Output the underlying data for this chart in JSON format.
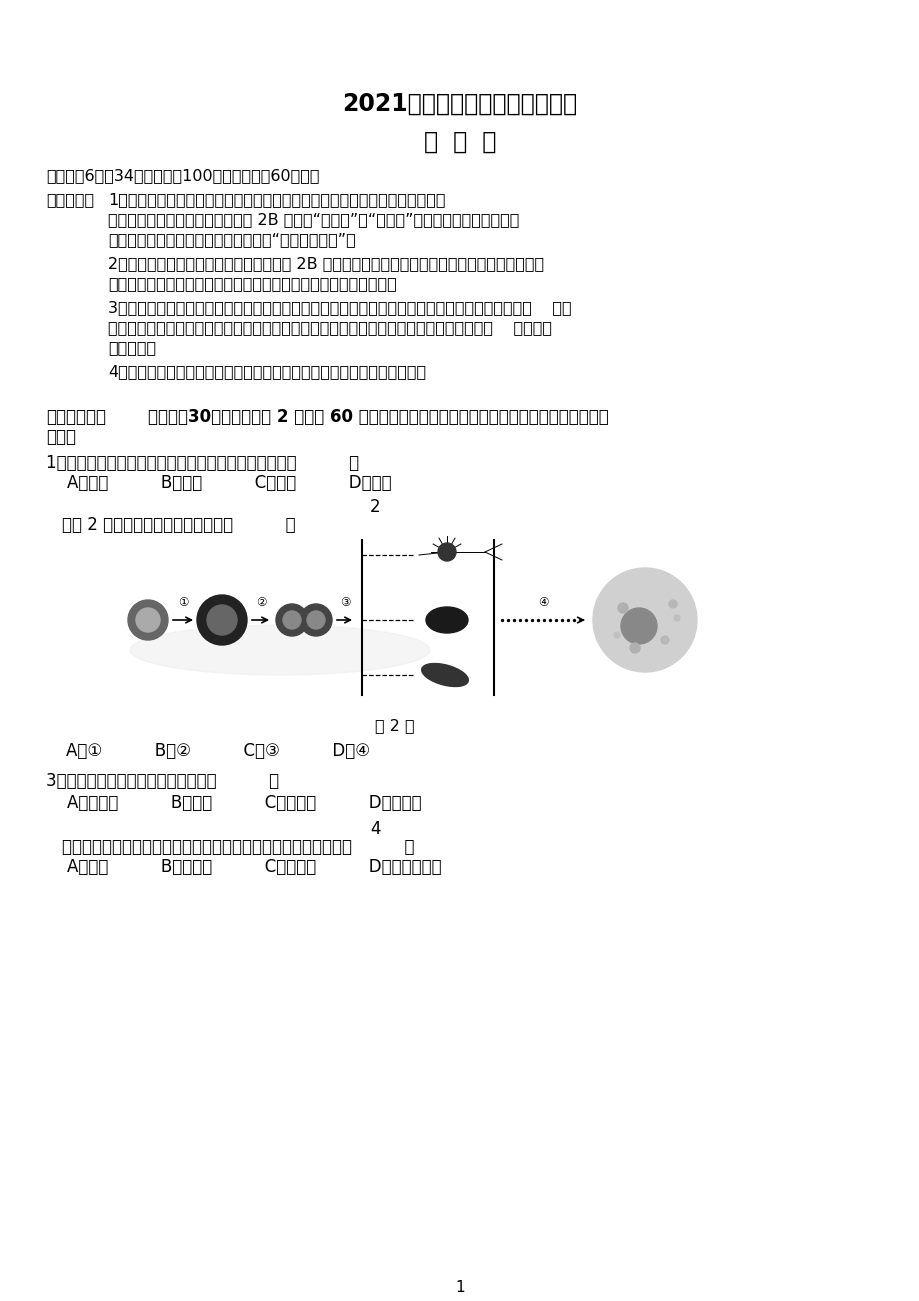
{
  "bg_color": "#ffffff",
  "title1": "2021年广东省初中学业水平考试",
  "title2": "生  物  学",
  "intro": "本试卷兲6页，34小题，满分100分。考试用时60分钟。",
  "note_bold": "注意事项：",
  "note1a": "1．答卷前，考生务必用黑色字迹的钒笔或签字笔将自己的准考证号、姓名、考",
  "note1b": "场号和座位号填写在答题卡上。用 2B 铅笔在“考场号”和“座位号”栏相应位置填涂自己的考",
  "note1c": "场号和座位号。将条形码粘贴在答题卡“条形码粘贴处”。",
  "note2a": "2．作答选择题时，选出每小题答案后，用 2B 铅笔把答题卡上对应题目选项的答案信息点涂黑；如",
  "note2b": "需改动，用橡皮擦干净后，再选涂其他答案，答案不能答在试卷上。",
  "note3a": "3．非选择题必须用黑色字迹的钒笔或签字笔作答，答案必须写在答题卡各题目指定区域内相应位置    上；",
  "note3b": "如需改动，先划握原来的答案，然后再写上新的答案；不准使用铅笔和涂改液。不按以上要    求作答的",
  "note3c": "答案无效。",
  "note4": "4．考生必须保持答题卡的整洁。考试结束后，将试卷和答题卡一并交回。",
  "sec_bold": "一、选择题：",
  "sec_rest": "本大题內30小题，每小题 2 分，共 60 分。在每小题给出的四个选项中，只有一项是符合题目要",
  "sec_line2": "求的。",
  "q1": "1．草履虫、水绵和大熊猫结构与功能的基本单位都是（          ）",
  "q1_opts": "    A．细胞          B．组织          C．器官          D．系统",
  "q2_num": "2",
  "q2_txt": "．题 2 图中表示人体细胞分化的是（          ）",
  "q2_cap": "题 2 图",
  "q2_opts": "A．①          B．②          C．③          D．④",
  "q3": "3．酸甜的菠萝汁主要存在于细胞的（          ）",
  "q3_opts": "    A．细胞核          B．液泡          C．叶绻体          D．线粒体",
  "q4_num": "4",
  "q4_txt": "．水杉是我国特有的珍稀物种，与之共同特征最多的分类等级是（          ）",
  "q4_opts": "    A．杉科          B．水杉属          C．松杉目          D．裸子植物门",
  "page_num": "1"
}
